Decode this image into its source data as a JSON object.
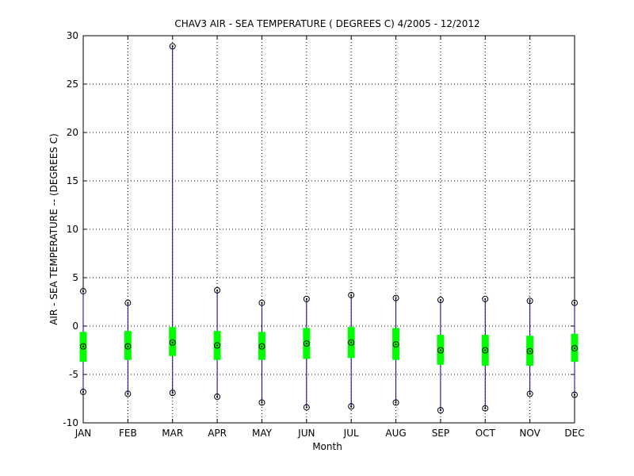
{
  "chart_data": {
    "type": "boxplot",
    "title": "CHAV3  AIR - SEA TEMPERATURE ( DEGREES C) 4/2005 - 12/2012",
    "xlabel": "Month",
    "ylabel": "AIR - SEA TEMPERATURE -- (DEGREES C)",
    "ylim": [
      -10,
      30
    ],
    "yticks": [
      -10,
      -5,
      0,
      5,
      10,
      15,
      20,
      25,
      30
    ],
    "grid": true,
    "categories": [
      "JAN",
      "FEB",
      "MAR",
      "APR",
      "MAY",
      "JUN",
      "JUL",
      "AUG",
      "SEP",
      "OCT",
      "NOV",
      "DEC"
    ],
    "series": [
      {
        "type": "range",
        "min": [
          -6.8,
          -7.0,
          -6.9,
          -7.3,
          -7.9,
          -8.4,
          -8.3,
          -7.9,
          -8.7,
          -8.5,
          -7.0,
          -7.1
        ],
        "max": [
          3.6,
          2.4,
          28.9,
          3.7,
          2.4,
          2.8,
          3.2,
          2.9,
          2.7,
          2.8,
          2.6,
          2.4
        ]
      },
      {
        "type": "box",
        "q1": [
          -3.7,
          -3.5,
          -3.1,
          -3.5,
          -3.5,
          -3.4,
          -3.3,
          -3.5,
          -4.0,
          -4.1,
          -4.1,
          -3.7
        ],
        "q3": [
          -0.6,
          -0.5,
          -0.1,
          -0.5,
          -0.6,
          -0.2,
          -0.1,
          -0.2,
          -0.9,
          -0.9,
          -1.0,
          -0.8
        ]
      },
      {
        "type": "median",
        "values": [
          -2.1,
          -2.1,
          -1.7,
          -2.0,
          -2.1,
          -1.8,
          -1.7,
          -1.9,
          -2.5,
          -2.5,
          -2.6,
          -2.3
        ]
      }
    ],
    "colors": {
      "whisker": "#00008f",
      "box": "#00ff00",
      "marker": "#000000",
      "grid": "#000000"
    }
  }
}
